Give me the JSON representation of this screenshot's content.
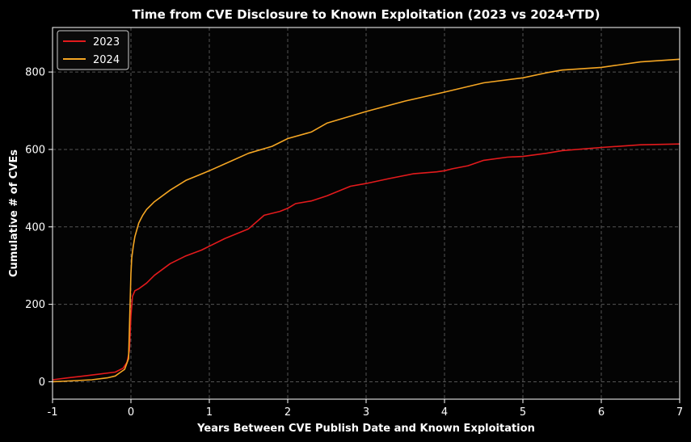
{
  "chart_data": {
    "type": "line",
    "title": "Time from CVE Disclosure to Known Exploitation (2023 vs 2024-YTD)",
    "xlabel": "Years Between CVE Publish Date and Known Exploitation",
    "ylabel": "Cumulative # of CVEs",
    "xlim": [
      -1,
      7
    ],
    "ylim": [
      -45,
      915
    ],
    "xticks": [
      -1,
      0,
      1,
      2,
      3,
      4,
      5,
      6,
      7
    ],
    "xtick_labels": [
      "-1",
      "0",
      "1",
      "2",
      "3",
      "4",
      "5",
      "6",
      "7"
    ],
    "yticks": [
      0,
      200,
      400,
      600,
      800
    ],
    "ytick_labels": [
      "0",
      "200",
      "400",
      "600",
      "800"
    ],
    "grid": true,
    "legend_position": "top-left",
    "series": [
      {
        "name": "2023",
        "color": "#e31a1c",
        "x": [
          -1,
          -0.8,
          -0.6,
          -0.4,
          -0.2,
          -0.1,
          -0.05,
          -0.02,
          0,
          0.02,
          0.05,
          0.1,
          0.2,
          0.3,
          0.5,
          0.7,
          0.9,
          1.0,
          1.2,
          1.5,
          1.7,
          1.9,
          2.0,
          2.1,
          2.3,
          2.5,
          2.8,
          3.0,
          3.3,
          3.6,
          3.9,
          4.0,
          4.1,
          4.3,
          4.5,
          4.8,
          5.0,
          5.3,
          5.5,
          6.0,
          6.5,
          7.0
        ],
        "y": [
          5,
          10,
          15,
          20,
          25,
          35,
          50,
          80,
          170,
          220,
          235,
          240,
          255,
          275,
          305,
          325,
          340,
          350,
          370,
          395,
          430,
          440,
          448,
          460,
          467,
          480,
          505,
          512,
          525,
          537,
          542,
          545,
          550,
          558,
          572,
          580,
          582,
          590,
          597,
          605,
          612,
          614
        ]
      },
      {
        "name": "2024",
        "color": "#f5a623",
        "x": [
          -1,
          -0.8,
          -0.5,
          -0.3,
          -0.2,
          -0.15,
          -0.08,
          -0.03,
          0,
          0.01,
          0.03,
          0.05,
          0.1,
          0.15,
          0.2,
          0.3,
          0.5,
          0.7,
          1.0,
          1.3,
          1.5,
          1.8,
          2.0,
          2.3,
          2.5,
          3.0,
          3.5,
          4.0,
          4.5,
          5.0,
          5.3,
          5.5,
          6.0,
          6.5,
          7.0
        ],
        "y": [
          0,
          2,
          5,
          10,
          15,
          22,
          32,
          60,
          280,
          320,
          350,
          375,
          410,
          430,
          445,
          465,
          495,
          520,
          545,
          572,
          590,
          608,
          628,
          645,
          668,
          698,
          725,
          748,
          772,
          785,
          798,
          805,
          812,
          826,
          833
        ]
      }
    ]
  }
}
